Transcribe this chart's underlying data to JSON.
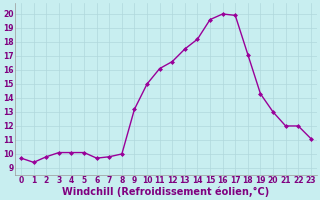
{
  "x": [
    0,
    1,
    2,
    3,
    4,
    5,
    6,
    7,
    8,
    9,
    10,
    11,
    12,
    13,
    14,
    15,
    16,
    17,
    18,
    19,
    20,
    21,
    22,
    23
  ],
  "y": [
    9.7,
    9.4,
    9.8,
    10.1,
    10.1,
    10.1,
    9.7,
    9.8,
    10.0,
    13.2,
    15.0,
    16.1,
    16.6,
    17.5,
    18.2,
    19.6,
    20.0,
    19.9,
    17.1,
    14.3,
    13.0,
    12.0,
    12.0,
    11.1
  ],
  "line_color": "#990099",
  "marker": "D",
  "markersize": 2.0,
  "linewidth": 1.0,
  "background_color": "#c8eef0",
  "grid_color": "#b0d8dc",
  "xlabel": "Windchill (Refroidissement éolien,°C)",
  "xlabel_color": "#800080",
  "tick_color": "#800080",
  "ylim": [
    8.5,
    20.8
  ],
  "xlim": [
    -0.5,
    23.5
  ],
  "yticks": [
    9,
    10,
    11,
    12,
    13,
    14,
    15,
    16,
    17,
    18,
    19,
    20
  ],
  "xticks": [
    0,
    1,
    2,
    3,
    4,
    5,
    6,
    7,
    8,
    9,
    10,
    11,
    12,
    13,
    14,
    15,
    16,
    17,
    18,
    19,
    20,
    21,
    22,
    23
  ],
  "tick_fontsize": 5.5,
  "xlabel_fontsize": 7.0,
  "spine_color": "#999999"
}
